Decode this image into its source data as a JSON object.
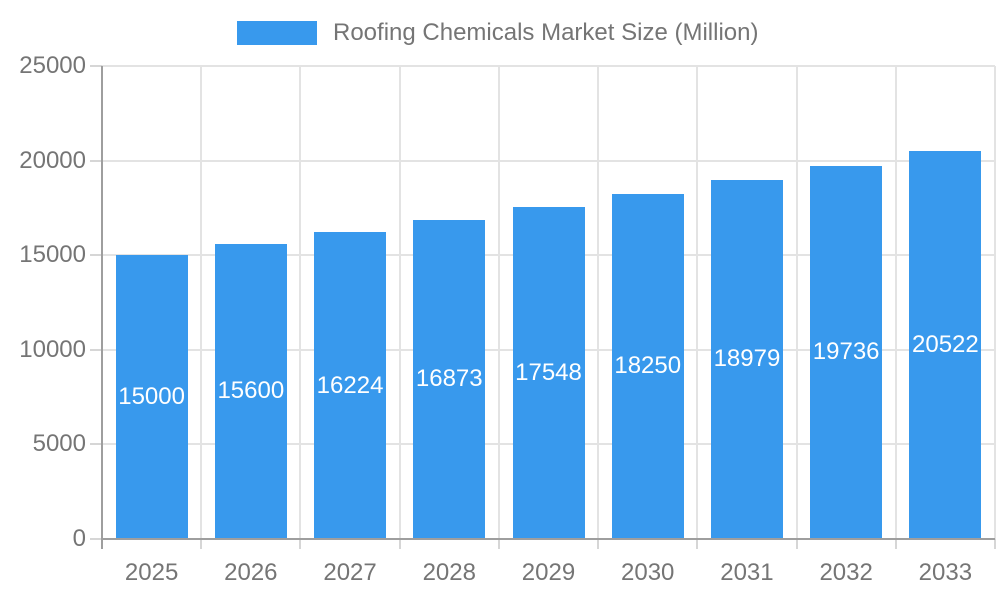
{
  "chart": {
    "legend_label": "Roofing Chemicals Market Size (Million)"
  },
  "colors": {
    "bar": "#3899ED",
    "axis_line": "#9E9E9E",
    "grid_line": "#E3E3E3",
    "tick_line": "#D6D6D6",
    "label_text": "#757575",
    "data_label_text": "#FFFFFF",
    "background": "#FFFFFF"
  },
  "chart_data": {
    "type": "bar",
    "title": "Roofing Chemicals Market Size (Million)",
    "series_name": "Roofing Chemicals Market Size (Million)",
    "categories": [
      "2025",
      "2026",
      "2027",
      "2028",
      "2029",
      "2030",
      "2031",
      "2032",
      "2033"
    ],
    "values": [
      15000,
      15600,
      16224,
      16873,
      17548,
      18250,
      18979,
      19736,
      20522
    ],
    "xlabel": "",
    "ylabel": "",
    "ylim": [
      0,
      25000
    ],
    "yticks": [
      0,
      5000,
      10000,
      15000,
      20000,
      25000
    ],
    "grid": true,
    "legend_position": "top",
    "data_label_position": "inside-center"
  }
}
